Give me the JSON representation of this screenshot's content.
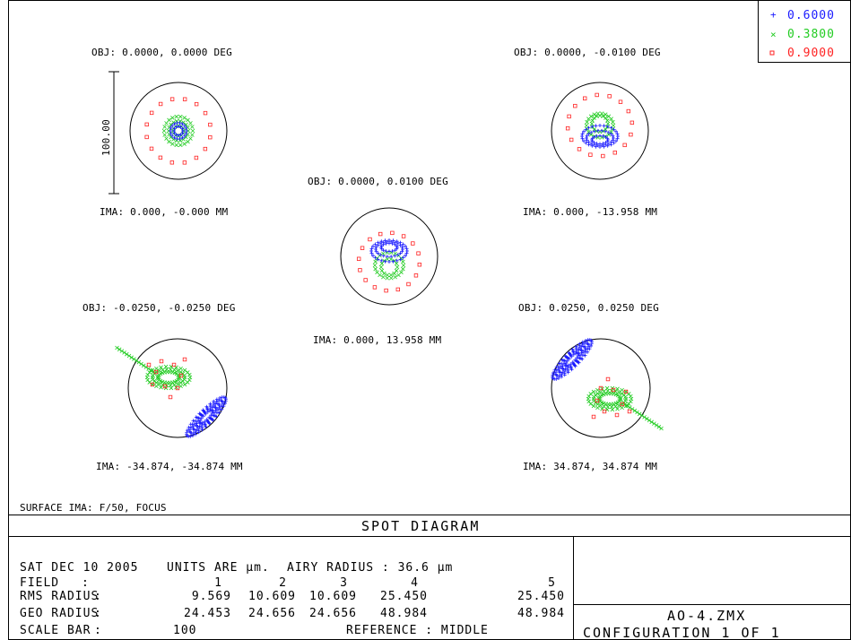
{
  "chart_data": {
    "type": "scatter",
    "title": "SPOT DIAGRAM",
    "legend": {
      "placement": "top-right",
      "entries": [
        {
          "marker": "+",
          "label": "0.6000",
          "color": "#1a1aff"
        },
        {
          "marker": "×",
          "label": "0.3800",
          "color": "#22cc22"
        },
        {
          "marker": "▫",
          "label": "0.9000",
          "color": "#ff2222"
        }
      ]
    },
    "scale_bar": {
      "label": "100.00",
      "value": 100
    },
    "fields": [
      {
        "id": "field-1",
        "obj": "OBJ: 0.0000, 0.0000 DEG",
        "ima": "IMA: 0.000, -0.000 MM"
      },
      {
        "id": "field-2",
        "obj": "OBJ: 0.0000, -0.0100 DEG",
        "ima": "IMA: 0.000, -13.958 MM"
      },
      {
        "id": "field-3",
        "obj": "OBJ: 0.0000, 0.0100 DEG",
        "ima": "IMA: 0.000, 13.958 MM"
      },
      {
        "id": "field-4",
        "obj": "OBJ: -0.0250, -0.0250 DEG",
        "ima": "IMA: -34.874, -34.874 MM"
      },
      {
        "id": "field-5",
        "obj": "OBJ: 0.0250, 0.0250 DEG",
        "ima": "IMA: 34.874, 34.874 MM"
      }
    ],
    "surface": "SURFACE IMA: F/50, FOCUS",
    "info": {
      "line1_date": "SAT DEC 10 2005",
      "line1_units": "UNITS ARE µm.",
      "line1_airy": "AIRY RADIUS : 36.6 µm",
      "field_label": "FIELD",
      "rms_label": "RMS RADIUS",
      "geo_label": "GEO RADIUS",
      "scale_label": "SCALE BAR",
      "sep": ":",
      "field_numbers": [
        "1",
        "2",
        "3",
        "4",
        "5"
      ],
      "rms_radius": [
        "9.569",
        "10.609",
        "10.609",
        "25.450",
        "25.450"
      ],
      "geo_radius": [
        "24.453",
        "24.656",
        "24.656",
        "48.984",
        "48.984"
      ],
      "scale_bar_value": "100",
      "reference": "REFERENCE : MIDDLE"
    },
    "file": "AO-4.ZMX",
    "configuration": "CONFIGURATION 1 OF 1"
  }
}
